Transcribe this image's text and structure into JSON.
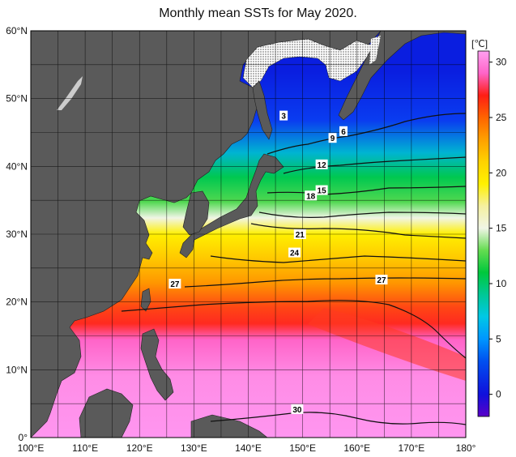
{
  "title": "Monthly mean SSTs for May 2020.",
  "colorbar": {
    "unit": "[℃]",
    "ticks": [
      0,
      5,
      10,
      15,
      20,
      25,
      30
    ],
    "min": -2,
    "max": 31,
    "stops": [
      {
        "v": -2,
        "c": "#5a00c8"
      },
      {
        "v": 0,
        "c": "#1010dc"
      },
      {
        "v": 3,
        "c": "#0050f0"
      },
      {
        "v": 5,
        "c": "#0096ff"
      },
      {
        "v": 7,
        "c": "#00c8e6"
      },
      {
        "v": 9,
        "c": "#00c896"
      },
      {
        "v": 11,
        "c": "#00c83c"
      },
      {
        "v": 13,
        "c": "#64dc50"
      },
      {
        "v": 15,
        "c": "#f0f5e6"
      },
      {
        "v": 17,
        "c": "#f5f0a0"
      },
      {
        "v": 19,
        "c": "#fff000"
      },
      {
        "v": 21,
        "c": "#ffd200"
      },
      {
        "v": 23,
        "c": "#ffa000"
      },
      {
        "v": 25,
        "c": "#ff6400"
      },
      {
        "v": 27,
        "c": "#ff1e14"
      },
      {
        "v": 29,
        "c": "#ff64c8"
      },
      {
        "v": 31,
        "c": "#ffa0f0"
      }
    ]
  },
  "axes": {
    "lon_ticks": [
      "100°E",
      "110°E",
      "120°E",
      "130°E",
      "140°E",
      "150°E",
      "160°E",
      "170°E",
      "180°"
    ],
    "lat_ticks": [
      "0°",
      "10°N",
      "20°N",
      "30°N",
      "40°N",
      "50°N",
      "60°N"
    ],
    "lon_range": [
      100,
      180
    ],
    "lat_range": [
      0,
      60
    ]
  },
  "contour_labels": [
    {
      "text": "3",
      "lon": 146.5,
      "lat": 47.5
    },
    {
      "text": "6",
      "lon": 157.5,
      "lat": 45.2
    },
    {
      "text": "9",
      "lon": 155.5,
      "lat": 44.2
    },
    {
      "text": "12",
      "lon": 153.5,
      "lat": 40.3
    },
    {
      "text": "15",
      "lon": 153.5,
      "lat": 36.5
    },
    {
      "text": "18",
      "lon": 151.5,
      "lat": 35.7
    },
    {
      "text": "21",
      "lon": 149.5,
      "lat": 30.0
    },
    {
      "text": "24",
      "lon": 148.5,
      "lat": 27.3
    },
    {
      "text": "27",
      "lon": 126.5,
      "lat": 22.7
    },
    {
      "text": "27",
      "lon": 164.5,
      "lat": 23.3
    },
    {
      "text": "30",
      "lon": 149.0,
      "lat": 4.2
    }
  ]
}
